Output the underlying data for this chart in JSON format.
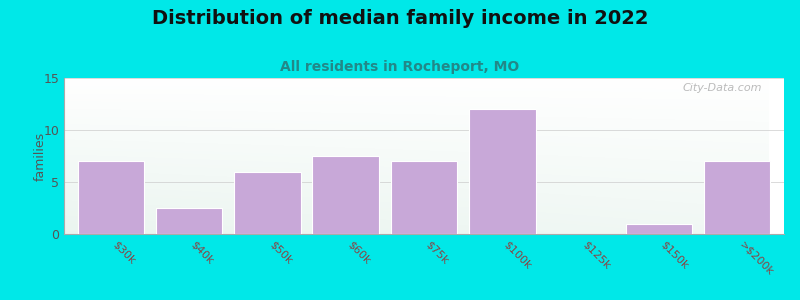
{
  "title": "Distribution of median family income in 2022",
  "subtitle": "All residents in Rocheport, MO",
  "categories": [
    "$30k",
    "$40k",
    "$50k",
    "$60k",
    "$75k",
    "$100k",
    "$125k",
    "$150k",
    ">$200k"
  ],
  "values": [
    7,
    2.5,
    6,
    7.5,
    7,
    12,
    0,
    1,
    7
  ],
  "bar_color": "#c8a8d8",
  "bar_edgecolor": "#b898c8",
  "background_color": "#00e8e8",
  "ylabel": "families",
  "ylim": [
    0,
    15
  ],
  "yticks": [
    0,
    5,
    10,
    15
  ],
  "title_fontsize": 14,
  "title_color": "#111111",
  "subtitle_fontsize": 10,
  "subtitle_color": "#228888",
  "watermark": "City-Data.com",
  "tick_label_color": "#884444",
  "tick_label_fontsize": 8
}
